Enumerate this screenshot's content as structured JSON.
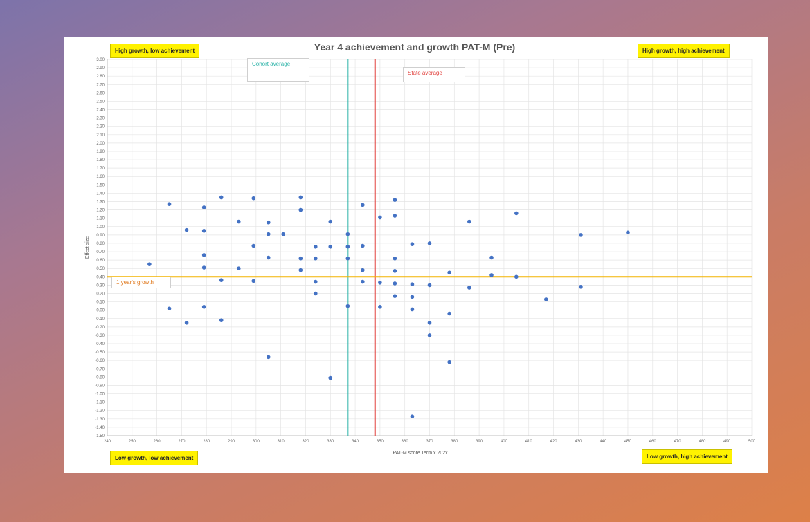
{
  "chart_data": {
    "type": "scatter",
    "title": "Year 4 achievement and growth PAT-M (Pre)",
    "xlabel": "PAT-M score Term x 202x",
    "ylabel": "Effect size",
    "xlim": [
      240,
      500
    ],
    "ylim": [
      -1.5,
      3.0
    ],
    "x_step": 10,
    "y_step": 0.1,
    "grid": true,
    "points": [
      {
        "x": 257,
        "y": 0.55
      },
      {
        "x": 265,
        "y": 1.27
      },
      {
        "x": 265,
        "y": 0.02
      },
      {
        "x": 272,
        "y": 0.96
      },
      {
        "x": 272,
        "y": -0.15
      },
      {
        "x": 279,
        "y": 1.23
      },
      {
        "x": 279,
        "y": 0.95
      },
      {
        "x": 279,
        "y": 0.66
      },
      {
        "x": 279,
        "y": 0.51
      },
      {
        "x": 279,
        "y": 0.04
      },
      {
        "x": 286,
        "y": 1.35
      },
      {
        "x": 286,
        "y": 0.36
      },
      {
        "x": 286,
        "y": -0.12
      },
      {
        "x": 293,
        "y": 1.06
      },
      {
        "x": 293,
        "y": 0.5
      },
      {
        "x": 299,
        "y": 1.34
      },
      {
        "x": 299,
        "y": 0.77
      },
      {
        "x": 299,
        "y": 0.35
      },
      {
        "x": 305,
        "y": 1.05
      },
      {
        "x": 305,
        "y": 0.91
      },
      {
        "x": 305,
        "y": 0.63
      },
      {
        "x": 305,
        "y": -0.56
      },
      {
        "x": 311,
        "y": 0.91
      },
      {
        "x": 318,
        "y": 1.35
      },
      {
        "x": 318,
        "y": 1.2
      },
      {
        "x": 318,
        "y": 0.62
      },
      {
        "x": 318,
        "y": 0.48
      },
      {
        "x": 324,
        "y": 0.76
      },
      {
        "x": 324,
        "y": 0.62
      },
      {
        "x": 324,
        "y": 0.34
      },
      {
        "x": 324,
        "y": 0.2
      },
      {
        "x": 330,
        "y": 1.06
      },
      {
        "x": 330,
        "y": 0.76
      },
      {
        "x": 330,
        "y": -0.81
      },
      {
        "x": 337,
        "y": 0.91
      },
      {
        "x": 337,
        "y": 0.76
      },
      {
        "x": 337,
        "y": 0.62
      },
      {
        "x": 337,
        "y": 0.05
      },
      {
        "x": 343,
        "y": 1.26
      },
      {
        "x": 343,
        "y": 0.77
      },
      {
        "x": 343,
        "y": 0.48
      },
      {
        "x": 343,
        "y": 0.34
      },
      {
        "x": 350,
        "y": 1.11
      },
      {
        "x": 350,
        "y": 0.33
      },
      {
        "x": 350,
        "y": 0.04
      },
      {
        "x": 356,
        "y": 1.32
      },
      {
        "x": 356,
        "y": 1.13
      },
      {
        "x": 356,
        "y": 0.62
      },
      {
        "x": 356,
        "y": 0.47
      },
      {
        "x": 356,
        "y": 0.32
      },
      {
        "x": 356,
        "y": 0.17
      },
      {
        "x": 363,
        "y": 0.79
      },
      {
        "x": 363,
        "y": 0.31
      },
      {
        "x": 363,
        "y": 0.16
      },
      {
        "x": 363,
        "y": 0.01
      },
      {
        "x": 363,
        "y": -1.27
      },
      {
        "x": 370,
        "y": 0.8
      },
      {
        "x": 370,
        "y": 0.3
      },
      {
        "x": 370,
        "y": -0.15
      },
      {
        "x": 370,
        "y": -0.3
      },
      {
        "x": 378,
        "y": 0.45
      },
      {
        "x": 378,
        "y": -0.04
      },
      {
        "x": 378,
        "y": -0.62
      },
      {
        "x": 386,
        "y": 1.06
      },
      {
        "x": 386,
        "y": 0.27
      },
      {
        "x": 395,
        "y": 0.63
      },
      {
        "x": 395,
        "y": 0.42
      },
      {
        "x": 405,
        "y": 1.16
      },
      {
        "x": 405,
        "y": 0.4
      },
      {
        "x": 417,
        "y": 0.13
      },
      {
        "x": 431,
        "y": 0.9
      },
      {
        "x": 431,
        "y": 0.28
      },
      {
        "x": 450,
        "y": 0.93
      }
    ],
    "reference_lines": [
      {
        "label": "Cohort average",
        "orientation": "vertical",
        "value": 337,
        "color": "#2bb3a8"
      },
      {
        "label": "State average",
        "orientation": "vertical",
        "value": 348,
        "color": "#e2433f"
      },
      {
        "label": "1 year's growth",
        "orientation": "horizontal",
        "value": 0.4,
        "color": "#f4b400"
      }
    ],
    "quadrant_labels": {
      "top_left": "High growth, low achievement",
      "top_right": "High growth, high achievement",
      "bottom_left": "Low growth, low achievement",
      "bottom_right": "Low growth, high achievement"
    }
  },
  "colors": {
    "point": "#4472c4",
    "grid": "#e4e4e4",
    "axis": "#bfbfbf",
    "quadrant_bg": "#fff200"
  }
}
